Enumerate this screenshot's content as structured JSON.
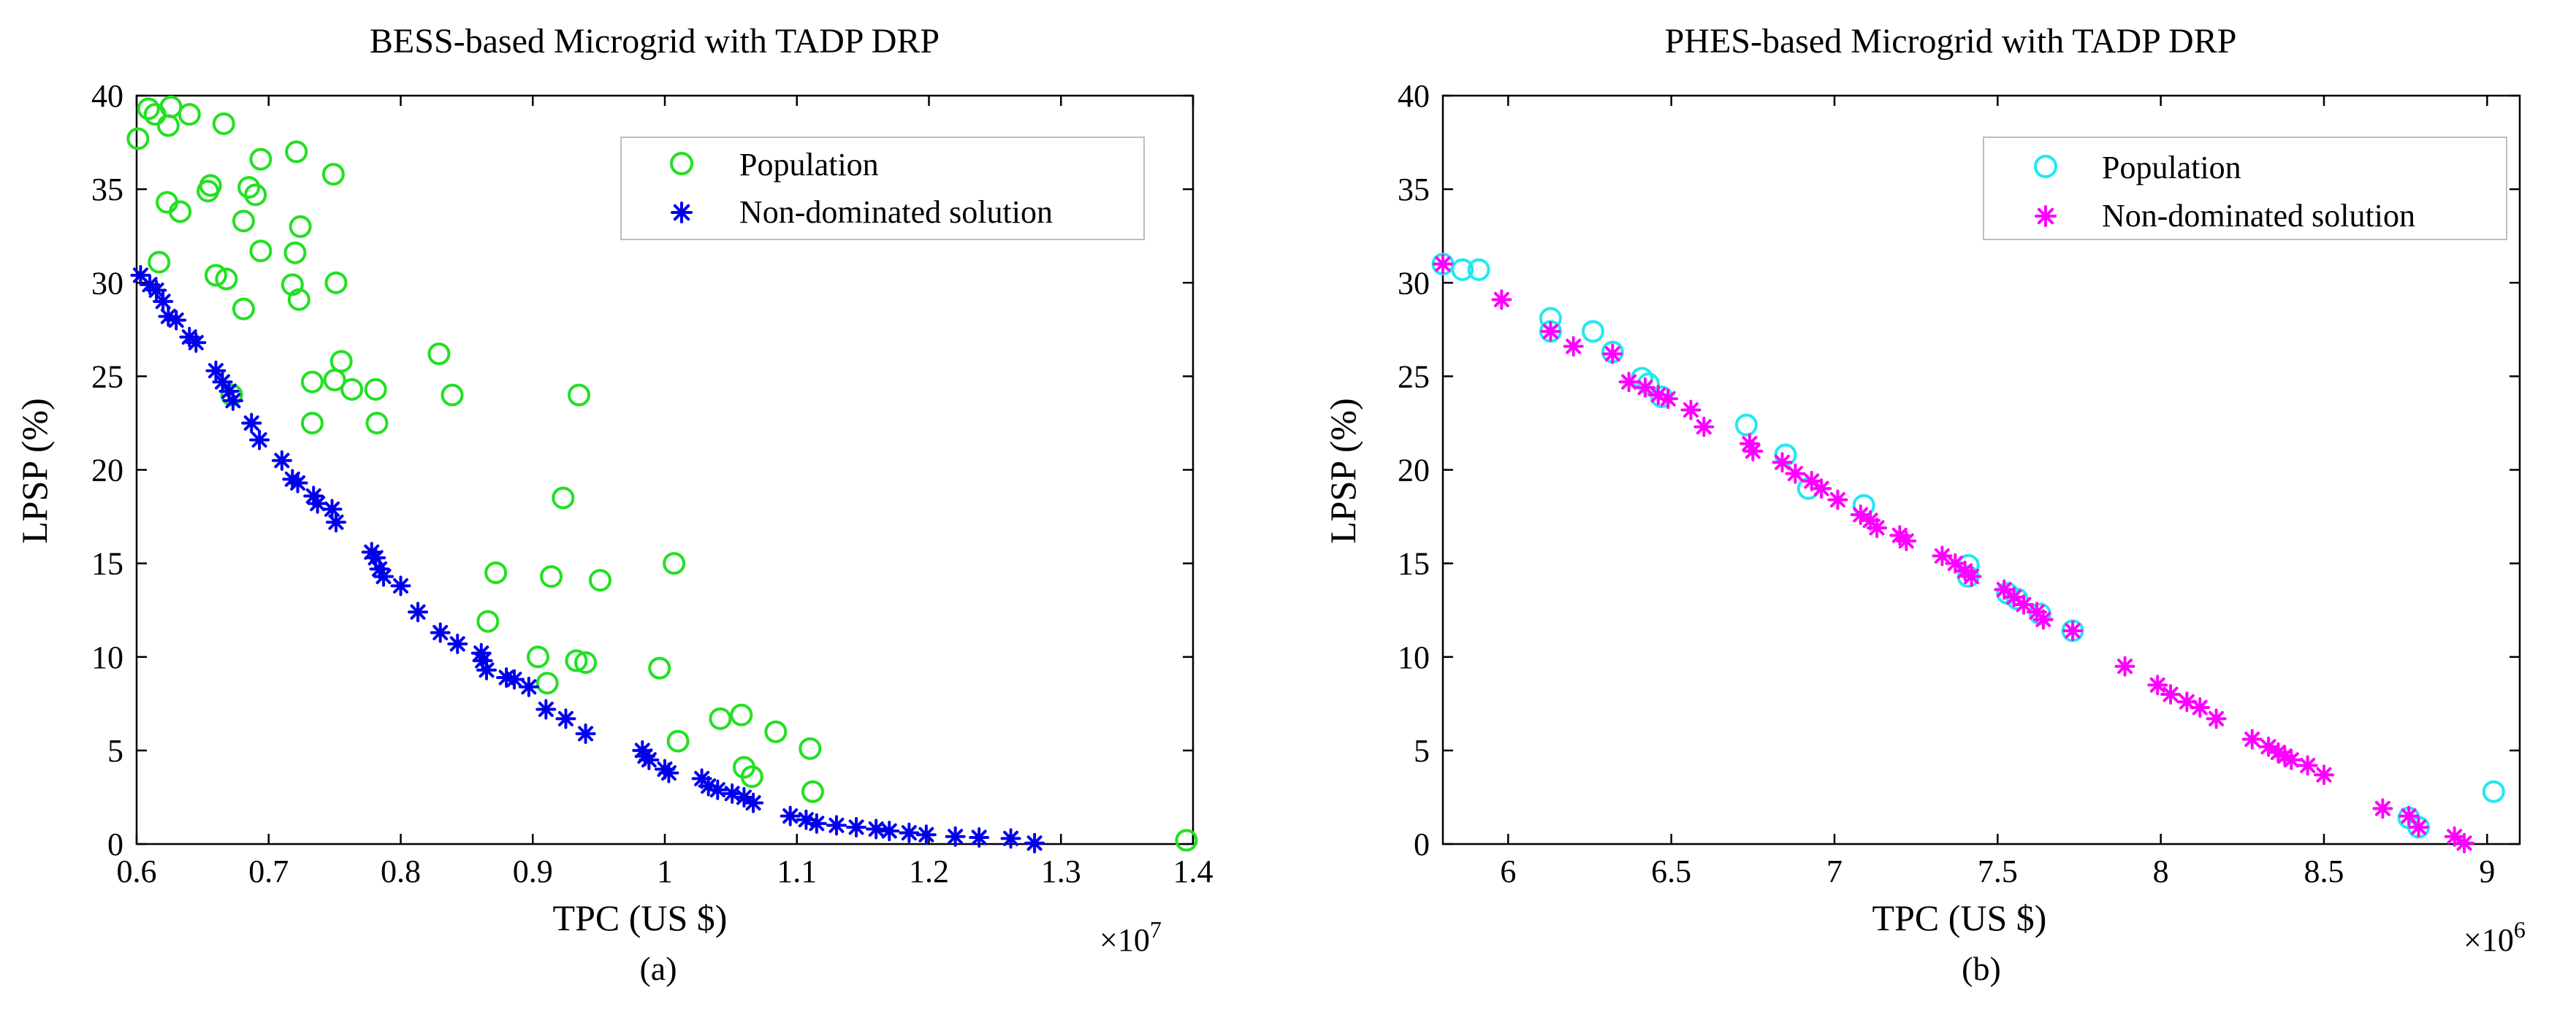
{
  "chart_data": [
    {
      "type": "scatter",
      "title": "BESS-based Microgrid with TADP DRP",
      "xlabel": "TPC (US $)",
      "ylabel": "LPSP (%)",
      "caption": "(a)",
      "x_multiplier_base": "×10",
      "x_multiplier_exp": "7",
      "xlim": [
        0.6,
        1.4
      ],
      "ylim": [
        0,
        40
      ],
      "xticks": [
        0.6,
        0.7,
        0.8,
        0.9,
        1.0,
        1.1,
        1.2,
        1.3,
        1.4
      ],
      "xtick_labels": [
        "0.6",
        "0.7",
        "0.8",
        "0.9",
        "1",
        "1.1",
        "1.2",
        "1.3",
        "1.4"
      ],
      "yticks": [
        0,
        5,
        10,
        15,
        20,
        25,
        30,
        35,
        40
      ],
      "ytick_labels": [
        "0",
        "5",
        "10",
        "15",
        "20",
        "25",
        "30",
        "35",
        "40"
      ],
      "legend_position": "top-right",
      "series": [
        {
          "name": "Population",
          "marker": "circle",
          "color": "#22e022",
          "points": [
            [
              0.601,
              37.7
            ],
            [
              0.609,
              39.3
            ],
            [
              0.614,
              39.0
            ],
            [
              0.617,
              31.1
            ],
            [
              0.623,
              34.3
            ],
            [
              0.624,
              38.4
            ],
            [
              0.626,
              39.4
            ],
            [
              0.633,
              33.8
            ],
            [
              0.64,
              39.0
            ],
            [
              0.654,
              34.9
            ],
            [
              0.656,
              35.2
            ],
            [
              0.66,
              30.4
            ],
            [
              0.666,
              38.5
            ],
            [
              0.668,
              30.2
            ],
            [
              0.672,
              24.0
            ],
            [
              0.681,
              33.3
            ],
            [
              0.681,
              28.6
            ],
            [
              0.685,
              35.1
            ],
            [
              0.69,
              34.7
            ],
            [
              0.694,
              36.6
            ],
            [
              0.694,
              31.7
            ],
            [
              0.718,
              29.9
            ],
            [
              0.72,
              31.6
            ],
            [
              0.721,
              37.0
            ],
            [
              0.723,
              29.1
            ],
            [
              0.724,
              33.0
            ],
            [
              0.733,
              24.7
            ],
            [
              0.733,
              22.5
            ],
            [
              0.749,
              35.8
            ],
            [
              0.75,
              24.8
            ],
            [
              0.751,
              30.0
            ],
            [
              0.755,
              25.8
            ],
            [
              0.763,
              24.3
            ],
            [
              0.781,
              24.3
            ],
            [
              0.782,
              22.5
            ],
            [
              0.829,
              26.2
            ],
            [
              0.839,
              24.0
            ],
            [
              0.866,
              11.9
            ],
            [
              0.872,
              14.5
            ],
            [
              0.904,
              10.0
            ],
            [
              0.911,
              8.6
            ],
            [
              0.914,
              14.3
            ],
            [
              0.923,
              18.5
            ],
            [
              0.933,
              9.8
            ],
            [
              0.935,
              24.0
            ],
            [
              0.94,
              9.7
            ],
            [
              0.951,
              14.1
            ],
            [
              0.996,
              9.4
            ],
            [
              1.007,
              15.0
            ],
            [
              1.01,
              5.5
            ],
            [
              1.042,
              6.7
            ],
            [
              1.058,
              6.9
            ],
            [
              1.06,
              4.1
            ],
            [
              1.066,
              3.6
            ],
            [
              1.084,
              6.0
            ],
            [
              1.11,
              5.1
            ],
            [
              1.112,
              2.8
            ],
            [
              1.395,
              0.2
            ]
          ]
        },
        {
          "name": "Non-dominated solution",
          "marker": "asterisk",
          "color": "#0000ee",
          "points": [
            [
              0.603,
              30.4
            ],
            [
              0.61,
              29.9
            ],
            [
              0.615,
              29.6
            ],
            [
              0.62,
              29.0
            ],
            [
              0.624,
              28.2
            ],
            [
              0.63,
              28.0
            ],
            [
              0.64,
              27.1
            ],
            [
              0.645,
              26.8
            ],
            [
              0.66,
              25.3
            ],
            [
              0.665,
              24.7
            ],
            [
              0.67,
              24.2
            ],
            [
              0.673,
              23.7
            ],
            [
              0.687,
              22.5
            ],
            [
              0.693,
              21.6
            ],
            [
              0.71,
              20.5
            ],
            [
              0.718,
              19.5
            ],
            [
              0.722,
              19.3
            ],
            [
              0.734,
              18.6
            ],
            [
              0.737,
              18.2
            ],
            [
              0.748,
              17.9
            ],
            [
              0.751,
              17.2
            ],
            [
              0.778,
              15.6
            ],
            [
              0.781,
              15.3
            ],
            [
              0.784,
              14.7
            ],
            [
              0.787,
              14.3
            ],
            [
              0.8,
              13.8
            ],
            [
              0.813,
              12.4
            ],
            [
              0.83,
              11.3
            ],
            [
              0.843,
              10.7
            ],
            [
              0.861,
              10.2
            ],
            [
              0.862,
              9.8
            ],
            [
              0.865,
              9.3
            ],
            [
              0.88,
              8.9
            ],
            [
              0.886,
              8.8
            ],
            [
              0.897,
              8.4
            ],
            [
              0.91,
              7.2
            ],
            [
              0.925,
              6.7
            ],
            [
              0.94,
              5.9
            ],
            [
              0.983,
              5.0
            ],
            [
              0.985,
              4.7
            ],
            [
              0.988,
              4.5
            ],
            [
              1.0,
              4.0
            ],
            [
              1.003,
              3.8
            ],
            [
              1.028,
              3.5
            ],
            [
              1.033,
              3.1
            ],
            [
              1.04,
              2.9
            ],
            [
              1.051,
              2.7
            ],
            [
              1.06,
              2.5
            ],
            [
              1.067,
              2.2
            ],
            [
              1.095,
              1.5
            ],
            [
              1.107,
              1.3
            ],
            [
              1.115,
              1.1
            ],
            [
              1.13,
              1.0
            ],
            [
              1.145,
              0.9
            ],
            [
              1.16,
              0.8
            ],
            [
              1.17,
              0.7
            ],
            [
              1.185,
              0.6
            ],
            [
              1.198,
              0.5
            ],
            [
              1.22,
              0.4
            ],
            [
              1.238,
              0.35
            ],
            [
              1.262,
              0.3
            ],
            [
              1.28,
              0.05
            ]
          ]
        }
      ]
    },
    {
      "type": "scatter",
      "title": "PHES-based Microgrid with TADP DRP",
      "xlabel": "TPC (US $)",
      "ylabel": "LPSP (%)",
      "caption": "(b)",
      "x_multiplier_base": "×10",
      "x_multiplier_exp": "6",
      "xlim": [
        5.8,
        9.1
      ],
      "ylim": [
        0,
        40
      ],
      "xticks": [
        6.0,
        6.5,
        7.0,
        7.5,
        8.0,
        8.5,
        9.0
      ],
      "xtick_labels": [
        "6",
        "6.5",
        "7",
        "7.5",
        "8",
        "8.5",
        "9"
      ],
      "yticks": [
        0,
        5,
        10,
        15,
        20,
        25,
        30,
        35,
        40
      ],
      "ytick_labels": [
        "0",
        "5",
        "10",
        "15",
        "20",
        "25",
        "30",
        "35",
        "40"
      ],
      "legend_position": "top-right",
      "series": [
        {
          "name": "Population",
          "marker": "circle",
          "color": "#22e8f0",
          "points": [
            [
              5.8,
              31.0
            ],
            [
              5.86,
              30.7
            ],
            [
              5.91,
              30.7
            ],
            [
              6.13,
              28.1
            ],
            [
              6.13,
              27.4
            ],
            [
              6.26,
              27.4
            ],
            [
              6.32,
              26.3
            ],
            [
              6.41,
              24.9
            ],
            [
              6.43,
              24.6
            ],
            [
              6.47,
              23.9
            ],
            [
              6.73,
              22.4
            ],
            [
              6.85,
              20.8
            ],
            [
              6.92,
              19.0
            ],
            [
              7.09,
              18.1
            ],
            [
              7.41,
              14.9
            ],
            [
              7.41,
              14.3
            ],
            [
              7.53,
              13.4
            ],
            [
              7.56,
              13.1
            ],
            [
              7.63,
              12.3
            ],
            [
              7.73,
              11.4
            ],
            [
              8.76,
              1.4
            ],
            [
              8.79,
              0.9
            ],
            [
              9.02,
              2.8
            ]
          ]
        },
        {
          "name": "Non-dominated solution",
          "marker": "asterisk",
          "color": "#ff00ff",
          "points": [
            [
              5.8,
              31.0
            ],
            [
              5.98,
              29.1
            ],
            [
              6.13,
              27.4
            ],
            [
              6.2,
              26.6
            ],
            [
              6.32,
              26.2
            ],
            [
              6.37,
              24.7
            ],
            [
              6.42,
              24.4
            ],
            [
              6.46,
              24.0
            ],
            [
              6.49,
              23.8
            ],
            [
              6.56,
              23.2
            ],
            [
              6.6,
              22.3
            ],
            [
              6.74,
              21.4
            ],
            [
              6.75,
              21.0
            ],
            [
              6.84,
              20.4
            ],
            [
              6.88,
              19.8
            ],
            [
              6.93,
              19.4
            ],
            [
              6.96,
              19.0
            ],
            [
              7.01,
              18.4
            ],
            [
              7.08,
              17.6
            ],
            [
              7.11,
              17.3
            ],
            [
              7.13,
              16.9
            ],
            [
              7.2,
              16.5
            ],
            [
              7.22,
              16.2
            ],
            [
              7.33,
              15.4
            ],
            [
              7.37,
              15.0
            ],
            [
              7.4,
              14.6
            ],
            [
              7.42,
              14.3
            ],
            [
              7.52,
              13.6
            ],
            [
              7.55,
              13.2
            ],
            [
              7.58,
              12.8
            ],
            [
              7.62,
              12.4
            ],
            [
              7.64,
              12.0
            ],
            [
              7.73,
              11.4
            ],
            [
              7.89,
              9.5
            ],
            [
              7.99,
              8.5
            ],
            [
              8.03,
              8.0
            ],
            [
              8.08,
              7.6
            ],
            [
              8.12,
              7.3
            ],
            [
              8.17,
              6.7
            ],
            [
              8.28,
              5.6
            ],
            [
              8.33,
              5.2
            ],
            [
              8.36,
              4.9
            ],
            [
              8.38,
              4.7
            ],
            [
              8.4,
              4.5
            ],
            [
              8.45,
              4.2
            ],
            [
              8.5,
              3.7
            ],
            [
              8.68,
              1.9
            ],
            [
              8.76,
              1.5
            ],
            [
              8.79,
              0.9
            ],
            [
              8.9,
              0.4
            ],
            [
              8.93,
              0.05
            ]
          ]
        }
      ]
    }
  ]
}
